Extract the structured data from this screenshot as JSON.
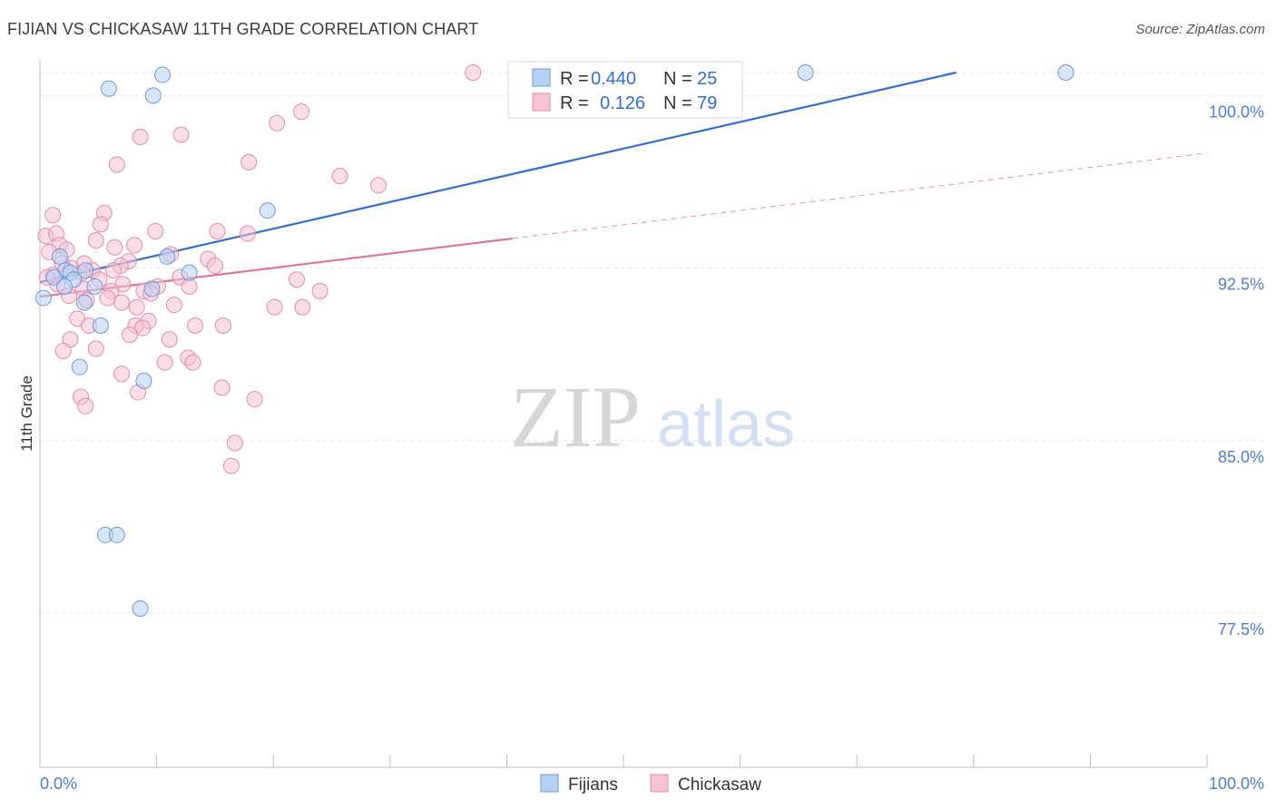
{
  "header": {
    "title": "FIJIAN VS CHICKASAW 11TH GRADE CORRELATION CHART",
    "source": "Source: ZipAtlas.com"
  },
  "watermark": {
    "zip": "ZIP",
    "atlas": "atlas"
  },
  "legend": {
    "rows": [
      {
        "r_label": "R =",
        "r_value": "0.440",
        "n_label": "N =",
        "n_value": "25"
      },
      {
        "r_label": "R =",
        "r_value": "0.126",
        "n_label": "N =",
        "n_value": "79"
      }
    ]
  },
  "bottom_legend": {
    "items": [
      {
        "label": "Fijians"
      },
      {
        "label": "Chickasaw"
      }
    ]
  },
  "colors": {
    "fijian_fill": "#b7d1f2",
    "fijian_stroke": "#6f9ad6",
    "fijian_line": "#2f6fd0",
    "chickasaw_fill": "#f6c3d3",
    "chickasaw_stroke": "#e58aa9",
    "chickasaw_line": "#e0709a",
    "tick_text": "#4a7fd0",
    "grid": "#e4e4e4"
  },
  "chart_data": {
    "type": "scatter",
    "title": "FIJIAN VS CHICKASAW 11TH GRADE CORRELATION CHART",
    "xlabel": "",
    "ylabel": "11th Grade",
    "xlim": [
      0,
      100
    ],
    "ylim": [
      70.8,
      101.0
    ],
    "x_tick_labels": [
      "0.0%",
      "100.0%"
    ],
    "y_ticks": [
      {
        "value": 100.0,
        "label": "100.0%"
      },
      {
        "value": 92.5,
        "label": "92.5%"
      },
      {
        "value": 85.0,
        "label": "85.0%"
      },
      {
        "value": 77.5,
        "label": "77.5%"
      }
    ],
    "series": [
      {
        "name": "Fijians",
        "r": 0.44,
        "n": 25,
        "trend": {
          "x": [
            0,
            78.5
          ],
          "y": [
            91.89,
            101.0
          ],
          "solid_to": 78.5
        },
        "points": [
          [
            5.9,
            100.3
          ],
          [
            10.5,
            100.9
          ],
          [
            9.7,
            100.0
          ],
          [
            65.6,
            101.0
          ],
          [
            87.9,
            101.0
          ],
          [
            19.5,
            95.0
          ],
          [
            10.9,
            93.0
          ],
          [
            12.8,
            92.3
          ],
          [
            1.7,
            93.0
          ],
          [
            2.2,
            92.4
          ],
          [
            3.9,
            92.4
          ],
          [
            2.6,
            92.3
          ],
          [
            1.2,
            92.1
          ],
          [
            2.9,
            92.0
          ],
          [
            2.1,
            91.7
          ],
          [
            4.7,
            91.7
          ],
          [
            9.6,
            91.6
          ],
          [
            0.3,
            91.2
          ],
          [
            3.8,
            91.0
          ],
          [
            5.2,
            90.0
          ],
          [
            3.4,
            88.2
          ],
          [
            8.9,
            87.6
          ],
          [
            5.6,
            80.9
          ],
          [
            6.6,
            80.9
          ],
          [
            8.6,
            77.7
          ]
        ]
      },
      {
        "name": "Chickasaw",
        "r": 0.126,
        "n": 79,
        "trend": {
          "x": [
            0,
            100
          ],
          "y": [
            91.26,
            97.5
          ],
          "solid_to": 40.5
        },
        "points": [
          [
            37.1,
            101.0
          ],
          [
            22.4,
            99.3
          ],
          [
            20.3,
            98.8
          ],
          [
            12.1,
            98.3
          ],
          [
            8.6,
            98.2
          ],
          [
            17.9,
            97.1
          ],
          [
            6.6,
            97.0
          ],
          [
            25.7,
            96.5
          ],
          [
            1.1,
            94.8
          ],
          [
            5.5,
            94.9
          ],
          [
            5.2,
            94.4
          ],
          [
            15.2,
            94.1
          ],
          [
            9.9,
            94.1
          ],
          [
            0.5,
            93.9
          ],
          [
            1.4,
            94.0
          ],
          [
            4.8,
            93.7
          ],
          [
            1.7,
            93.5
          ],
          [
            8.1,
            93.5
          ],
          [
            6.4,
            93.4
          ],
          [
            0.8,
            93.2
          ],
          [
            2.3,
            93.3
          ],
          [
            11.2,
            93.1
          ],
          [
            14.4,
            92.9
          ],
          [
            7.6,
            92.8
          ],
          [
            1.9,
            92.7
          ],
          [
            3.8,
            92.7
          ],
          [
            6.9,
            92.6
          ],
          [
            2.7,
            92.5
          ],
          [
            4.5,
            92.4
          ],
          [
            3.6,
            92.3
          ],
          [
            1.1,
            92.2
          ],
          [
            12.0,
            92.1
          ],
          [
            5.1,
            92.0
          ],
          [
            1.5,
            91.8
          ],
          [
            7.1,
            91.8
          ],
          [
            10.1,
            91.7
          ],
          [
            12.8,
            91.7
          ],
          [
            3.7,
            91.6
          ],
          [
            6.1,
            91.5
          ],
          [
            8.9,
            91.5
          ],
          [
            9.5,
            91.4
          ],
          [
            2.5,
            91.3
          ],
          [
            4.0,
            91.1
          ],
          [
            7.0,
            91.0
          ],
          [
            11.5,
            90.9
          ],
          [
            8.3,
            90.8
          ],
          [
            20.1,
            90.8
          ],
          [
            3.2,
            90.3
          ],
          [
            9.3,
            90.2
          ],
          [
            8.2,
            90.0
          ],
          [
            4.2,
            90.0
          ],
          [
            13.3,
            90.0
          ],
          [
            15.7,
            90.0
          ],
          [
            8.8,
            89.9
          ],
          [
            7.7,
            89.6
          ],
          [
            11.1,
            89.4
          ],
          [
            2.6,
            89.4
          ],
          [
            4.8,
            89.0
          ],
          [
            2.0,
            88.9
          ],
          [
            12.7,
            88.6
          ],
          [
            10.7,
            88.4
          ],
          [
            13.1,
            88.4
          ],
          [
            7.0,
            87.9
          ],
          [
            15.6,
            87.3
          ],
          [
            8.4,
            87.1
          ],
          [
            3.5,
            86.9
          ],
          [
            18.4,
            86.8
          ],
          [
            3.9,
            86.5
          ],
          [
            16.7,
            84.9
          ],
          [
            16.4,
            83.9
          ],
          [
            29.0,
            96.1
          ],
          [
            22.0,
            92.0
          ],
          [
            22.5,
            90.8
          ],
          [
            24.0,
            91.5
          ],
          [
            17.8,
            94.0
          ],
          [
            15.0,
            92.6
          ],
          [
            0.6,
            92.1
          ],
          [
            6.3,
            92.4
          ],
          [
            5.8,
            91.2
          ]
        ]
      }
    ]
  }
}
